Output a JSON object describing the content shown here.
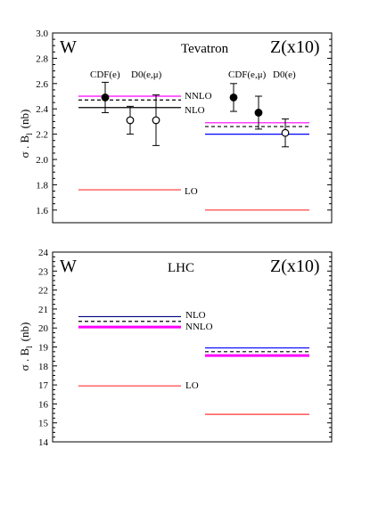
{
  "chart_data": [
    {
      "type": "scatter",
      "title": "Tevatron",
      "left_label": "W",
      "right_label": "Z(x10)",
      "ylabel": "σ . B",
      "ylabel_subscript": "l",
      "ylabel_unit": "(nb)",
      "ylim": [
        1.5,
        3.0
      ],
      "yticks": [
        "1.6",
        "1.8",
        "2.0",
        "2.2",
        "2.4",
        "2.6",
        "2.8",
        "3.0"
      ],
      "experiment_labels": {
        "W": [
          "CDF(e)",
          "D0(e,μ)"
        ],
        "Z": [
          "CDF(e,μ)",
          "D0(e)"
        ]
      },
      "prediction_labels": [
        "NNLO",
        "NLO",
        "LO"
      ],
      "predictions": [
        {
          "process": "W",
          "order": "NNLO",
          "value": 2.5,
          "color": "#ff00ff",
          "style": "solid"
        },
        {
          "process": "W",
          "order": "NNLO-dashed",
          "value": 2.47,
          "color": "#000000",
          "style": "dashed"
        },
        {
          "process": "W",
          "order": "NLO",
          "value": 2.41,
          "color": "#000000",
          "style": "solid"
        },
        {
          "process": "W",
          "order": "LO",
          "value": 1.76,
          "color": "#ff3333",
          "style": "solid"
        },
        {
          "process": "Z",
          "order": "NNLO",
          "value": 2.29,
          "color": "#ff00ff",
          "style": "solid"
        },
        {
          "process": "Z",
          "order": "NNLO-dashed",
          "value": 2.26,
          "color": "#000000",
          "style": "dashed"
        },
        {
          "process": "Z",
          "order": "NLO",
          "value": 2.2,
          "color": "#0000ff",
          "style": "solid"
        },
        {
          "process": "Z",
          "order": "LO",
          "value": 1.6,
          "color": "#ff3333",
          "style": "solid"
        }
      ],
      "measurements": [
        {
          "process": "W",
          "x": 1,
          "y": 2.49,
          "err": 0.12,
          "filled": true
        },
        {
          "process": "W",
          "x": 2,
          "y": 2.31,
          "err": 0.11,
          "filled": false
        },
        {
          "process": "W",
          "x": 3,
          "y": 2.31,
          "err": 0.2,
          "filled": false
        },
        {
          "process": "Z",
          "x": 1,
          "y": 2.49,
          "err": 0.11,
          "filled": true
        },
        {
          "process": "Z",
          "x": 2,
          "y": 2.37,
          "err": 0.13,
          "filled": true
        },
        {
          "process": "Z",
          "x": 3,
          "y": 2.21,
          "err": 0.11,
          "filled": false
        }
      ]
    },
    {
      "type": "scatter",
      "title": "LHC",
      "left_label": "W",
      "right_label": "Z(x10)",
      "ylabel": "σ . B",
      "ylabel_subscript": "l",
      "ylabel_unit": "(nb)",
      "ylim": [
        14,
        24
      ],
      "yticks": [
        "14",
        "15",
        "16",
        "17",
        "18",
        "19",
        "20",
        "21",
        "22",
        "23",
        "24"
      ],
      "prediction_labels": [
        "NLO",
        "NNLO",
        "LO"
      ],
      "predictions": [
        {
          "process": "W",
          "order": "NLO",
          "value": 20.6,
          "color": "#000080",
          "style": "solid"
        },
        {
          "process": "W",
          "order": "NLO-dashed",
          "value": 20.35,
          "color": "#000000",
          "style": "dashed"
        },
        {
          "process": "W",
          "order": "NNLO",
          "value": 20.05,
          "color": "#ff00ff",
          "style": "solid-thick"
        },
        {
          "process": "W",
          "order": "LO",
          "value": 16.95,
          "color": "#ff3333",
          "style": "solid"
        },
        {
          "process": "Z",
          "order": "NLO",
          "value": 18.95,
          "color": "#0000ff",
          "style": "solid"
        },
        {
          "process": "Z",
          "order": "NLO-dashed",
          "value": 18.75,
          "color": "#000000",
          "style": "dashed"
        },
        {
          "process": "Z",
          "order": "NNLO",
          "value": 18.55,
          "color": "#ff00ff",
          "style": "solid-thick"
        },
        {
          "process": "Z",
          "order": "LO",
          "value": 15.45,
          "color": "#ff3333",
          "style": "solid"
        }
      ],
      "measurements": []
    }
  ]
}
